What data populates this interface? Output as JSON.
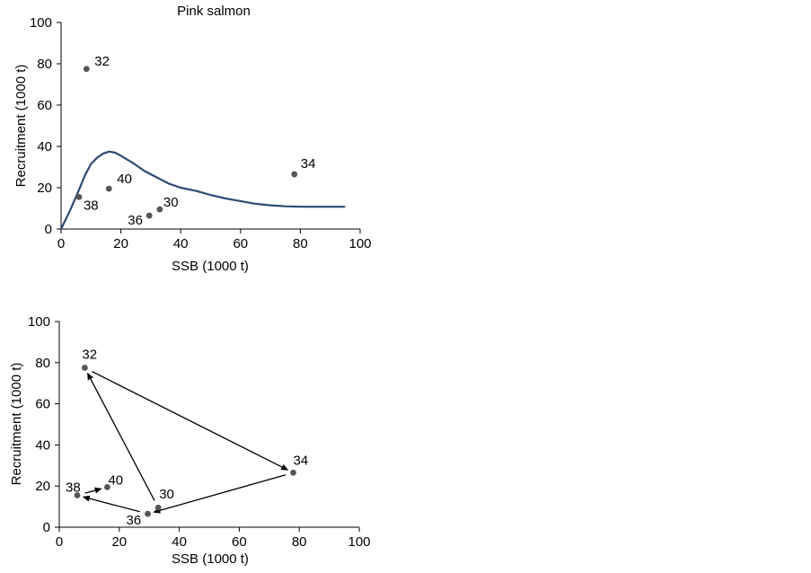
{
  "chart_data": [
    {
      "type": "scatter",
      "title": "Pink salmon",
      "xlabel": "SSB (1000 t)",
      "ylabel": "Recruitment (1000 t)",
      "xlim": [
        0,
        100
      ],
      "ylim": [
        0,
        100
      ],
      "xticks": [
        0,
        20,
        40,
        60,
        80,
        100
      ],
      "yticks": [
        0,
        20,
        40,
        60,
        80,
        100
      ],
      "grid": false,
      "points": [
        {
          "label": "30",
          "x": 33,
          "y": 9.5
        },
        {
          "label": "32",
          "x": 8.5,
          "y": 77.5
        },
        {
          "label": "34",
          "x": 78,
          "y": 26.5
        },
        {
          "label": "36",
          "x": 29.5,
          "y": 6.5
        },
        {
          "label": "38",
          "x": 6,
          "y": 15.5
        },
        {
          "label": "40",
          "x": 16,
          "y": 19.5
        }
      ],
      "curve": {
        "x": [
          0,
          3,
          6,
          8,
          10,
          12,
          14,
          16,
          18,
          20,
          24,
          28,
          32,
          36,
          40,
          45,
          50,
          55,
          60,
          65,
          70,
          75,
          80,
          85,
          90,
          95
        ],
        "y": [
          0,
          9,
          19,
          26,
          31.5,
          34.5,
          36.5,
          37.5,
          37,
          35.5,
          32,
          28,
          25,
          22,
          20,
          18.5,
          16.5,
          14.8,
          13.5,
          12.2,
          11.5,
          11,
          10.8,
          10.8,
          10.8,
          10.8
        ],
        "color": "#2e4a74"
      },
      "point_color": "#555555"
    },
    {
      "type": "scatter",
      "title": "",
      "xlabel": "SSB (1000 t)",
      "ylabel": "Recruitment (1000 t)",
      "xlim": [
        0,
        100
      ],
      "ylim": [
        0,
        100
      ],
      "xticks": [
        0,
        20,
        40,
        60,
        80,
        100
      ],
      "yticks": [
        0,
        20,
        40,
        60,
        80,
        100
      ],
      "grid": false,
      "points": [
        {
          "label": "30",
          "x": 33,
          "y": 9.5
        },
        {
          "label": "32",
          "x": 8.5,
          "y": 77.5
        },
        {
          "label": "34",
          "x": 78,
          "y": 26.5
        },
        {
          "label": "36",
          "x": 29.5,
          "y": 6.5
        },
        {
          "label": "38",
          "x": 6,
          "y": 15.5
        },
        {
          "label": "40",
          "x": 16,
          "y": 19.5
        }
      ],
      "arrow_sequence": [
        "30",
        "32",
        "34",
        "36",
        "38",
        "40"
      ],
      "point_color": "#555555"
    }
  ]
}
